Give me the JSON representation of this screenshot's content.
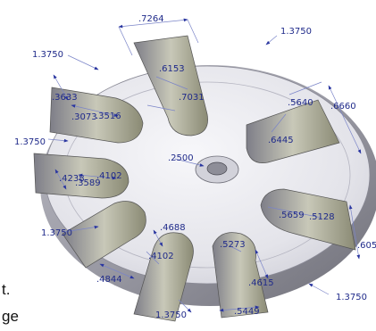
{
  "drawing": {
    "colors": {
      "dimension": "#1f2a8a",
      "part_light": "#e9e9ef",
      "part_mid": "#c9c9d2",
      "part_dark": "#8c8c96",
      "slot_fill": "#f4f4f7"
    },
    "dimensions": [
      {
        "name": "dim-7264",
        "text": ".7264"
      },
      {
        "name": "dim-1375-top-right",
        "text": "1.3750"
      },
      {
        "name": "dim-1375-top-left",
        "text": "1.3750"
      },
      {
        "name": "dim-6153",
        "text": ".6153"
      },
      {
        "name": "dim-7031",
        "text": ".7031"
      },
      {
        "name": "dim-3633",
        "text": ".3633"
      },
      {
        "name": "dim-3073",
        "text": ".3073"
      },
      {
        "name": "dim-3516",
        "text": ".3516"
      },
      {
        "name": "dim-5640",
        "text": ".5640"
      },
      {
        "name": "dim-6660",
        "text": ".6660"
      },
      {
        "name": "dim-6445",
        "text": ".6445"
      },
      {
        "name": "dim-1375-left",
        "text": "1.3750"
      },
      {
        "name": "dim-2500",
        "text": ".2500"
      },
      {
        "name": "dim-4238",
        "text": ".4238"
      },
      {
        "name": "dim-3589",
        "text": ".3589"
      },
      {
        "name": "dim-4102-left",
        "text": ".4102"
      },
      {
        "name": "dim-5659",
        "text": ".5659"
      },
      {
        "name": "dim-5128",
        "text": ".5128"
      },
      {
        "name": "dim-605",
        "text": ".605"
      },
      {
        "name": "dim-1375-lower-left",
        "text": "1.3750"
      },
      {
        "name": "dim-4688",
        "text": ".4688"
      },
      {
        "name": "dim-5273",
        "text": ".5273"
      },
      {
        "name": "dim-4102-bottom",
        "text": ".4102"
      },
      {
        "name": "dim-4615",
        "text": ".4615"
      },
      {
        "name": "dim-4844",
        "text": ".4844"
      },
      {
        "name": "dim-1375-bottom-right",
        "text": "1.3750"
      },
      {
        "name": "dim-1375-bottom",
        "text": "1.3750"
      },
      {
        "name": "dim-5449",
        "text": ".5449"
      }
    ],
    "side_text": [
      {
        "name": "cropped-text-t",
        "text": "t."
      },
      {
        "name": "cropped-text-ge",
        "text": "ge"
      }
    ]
  }
}
